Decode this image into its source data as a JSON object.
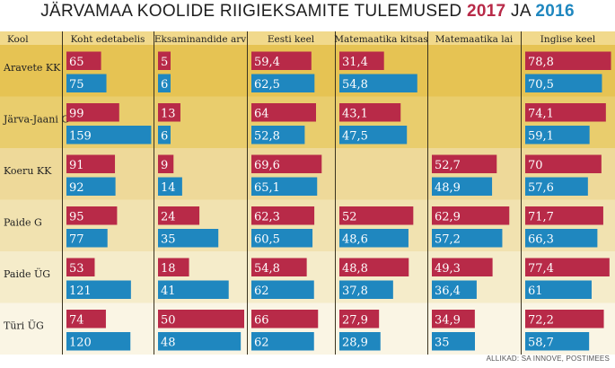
{
  "title": {
    "prefix": "JÄRVAMAA KOOLIDE RIIGIEKSAMITE TULEMUSED",
    "year1": "2017",
    "joiner": "JA",
    "year2": "2016"
  },
  "colors": {
    "bar_2017": "#b82a48",
    "bar_2016": "#1f87bf",
    "row_bg": [
      "#e6c353",
      "#e9cd6d",
      "#eed999",
      "#f1e2b0",
      "#f5ecca",
      "#faf5e4"
    ],
    "header_bg": "#f1d98c",
    "title_2017": "#b82a48",
    "title_2016": "#1f87bf"
  },
  "chart_data": {
    "type": "bar",
    "layout": "small-multiples-table",
    "row_header": "Kool",
    "schools": [
      "Aravete KK",
      "Järva-Jaani G",
      "Koeru KK",
      "Paide G",
      "Paide ÜG",
      "Türi ÜG"
    ],
    "legend": [
      "2017",
      "2016"
    ],
    "metrics": [
      {
        "name": "Koht edetabelis",
        "max": 160,
        "series": [
          {
            "name": "2017",
            "values": [
              "65",
              "99",
              "91",
              "95",
              "53",
              "74"
            ]
          },
          {
            "name": "2016",
            "values": [
              "75",
              "159",
              "92",
              "77",
              "121",
              "120"
            ]
          }
        ]
      },
      {
        "name": "Eksaminandide arv",
        "max": 50,
        "series": [
          {
            "name": "2017",
            "values": [
              "5",
              "13",
              "9",
              "24",
              "18",
              "50"
            ]
          },
          {
            "name": "2016",
            "values": [
              "6",
              "6",
              "14",
              "35",
              "41",
              "48"
            ]
          }
        ]
      },
      {
        "name": "Eesti keel",
        "max": 80,
        "series": [
          {
            "name": "2017",
            "values": [
              "59,4",
              "64",
              "69,6",
              "62,3",
              "54,8",
              "66"
            ]
          },
          {
            "name": "2016",
            "values": [
              "62,5",
              "52,8",
              "65,1",
              "60,5",
              "62",
              "62"
            ]
          }
        ]
      },
      {
        "name": "Matemaatika kitsas",
        "max": 60,
        "series": [
          {
            "name": "2017",
            "values": [
              "31,4",
              "43,1",
              "",
              "52",
              "48,8",
              "27,9"
            ]
          },
          {
            "name": "2016",
            "values": [
              "54,8",
              "47,5",
              "",
              "48,6",
              "37,8",
              "28,9"
            ]
          }
        ]
      },
      {
        "name": "Matemaatika lai",
        "max": 70,
        "series": [
          {
            "name": "2017",
            "values": [
              "",
              "",
              "52,7",
              "62,9",
              "49,3",
              "34,9"
            ]
          },
          {
            "name": "2016",
            "values": [
              "",
              "",
              "48,9",
              "57,2",
              "36,4",
              "35"
            ]
          }
        ]
      },
      {
        "name": "Inglise keel",
        "max": 80,
        "series": [
          {
            "name": "2017",
            "values": [
              "78,8",
              "74,1",
              "70",
              "71,7",
              "77,4",
              "72,2"
            ]
          },
          {
            "name": "2016",
            "values": [
              "70,5",
              "59,1",
              "57,6",
              "66,3",
              "61",
              "58,7"
            ]
          }
        ]
      }
    ]
  },
  "source": "ALLIKAD: SA INNOVE, POSTIMEES"
}
